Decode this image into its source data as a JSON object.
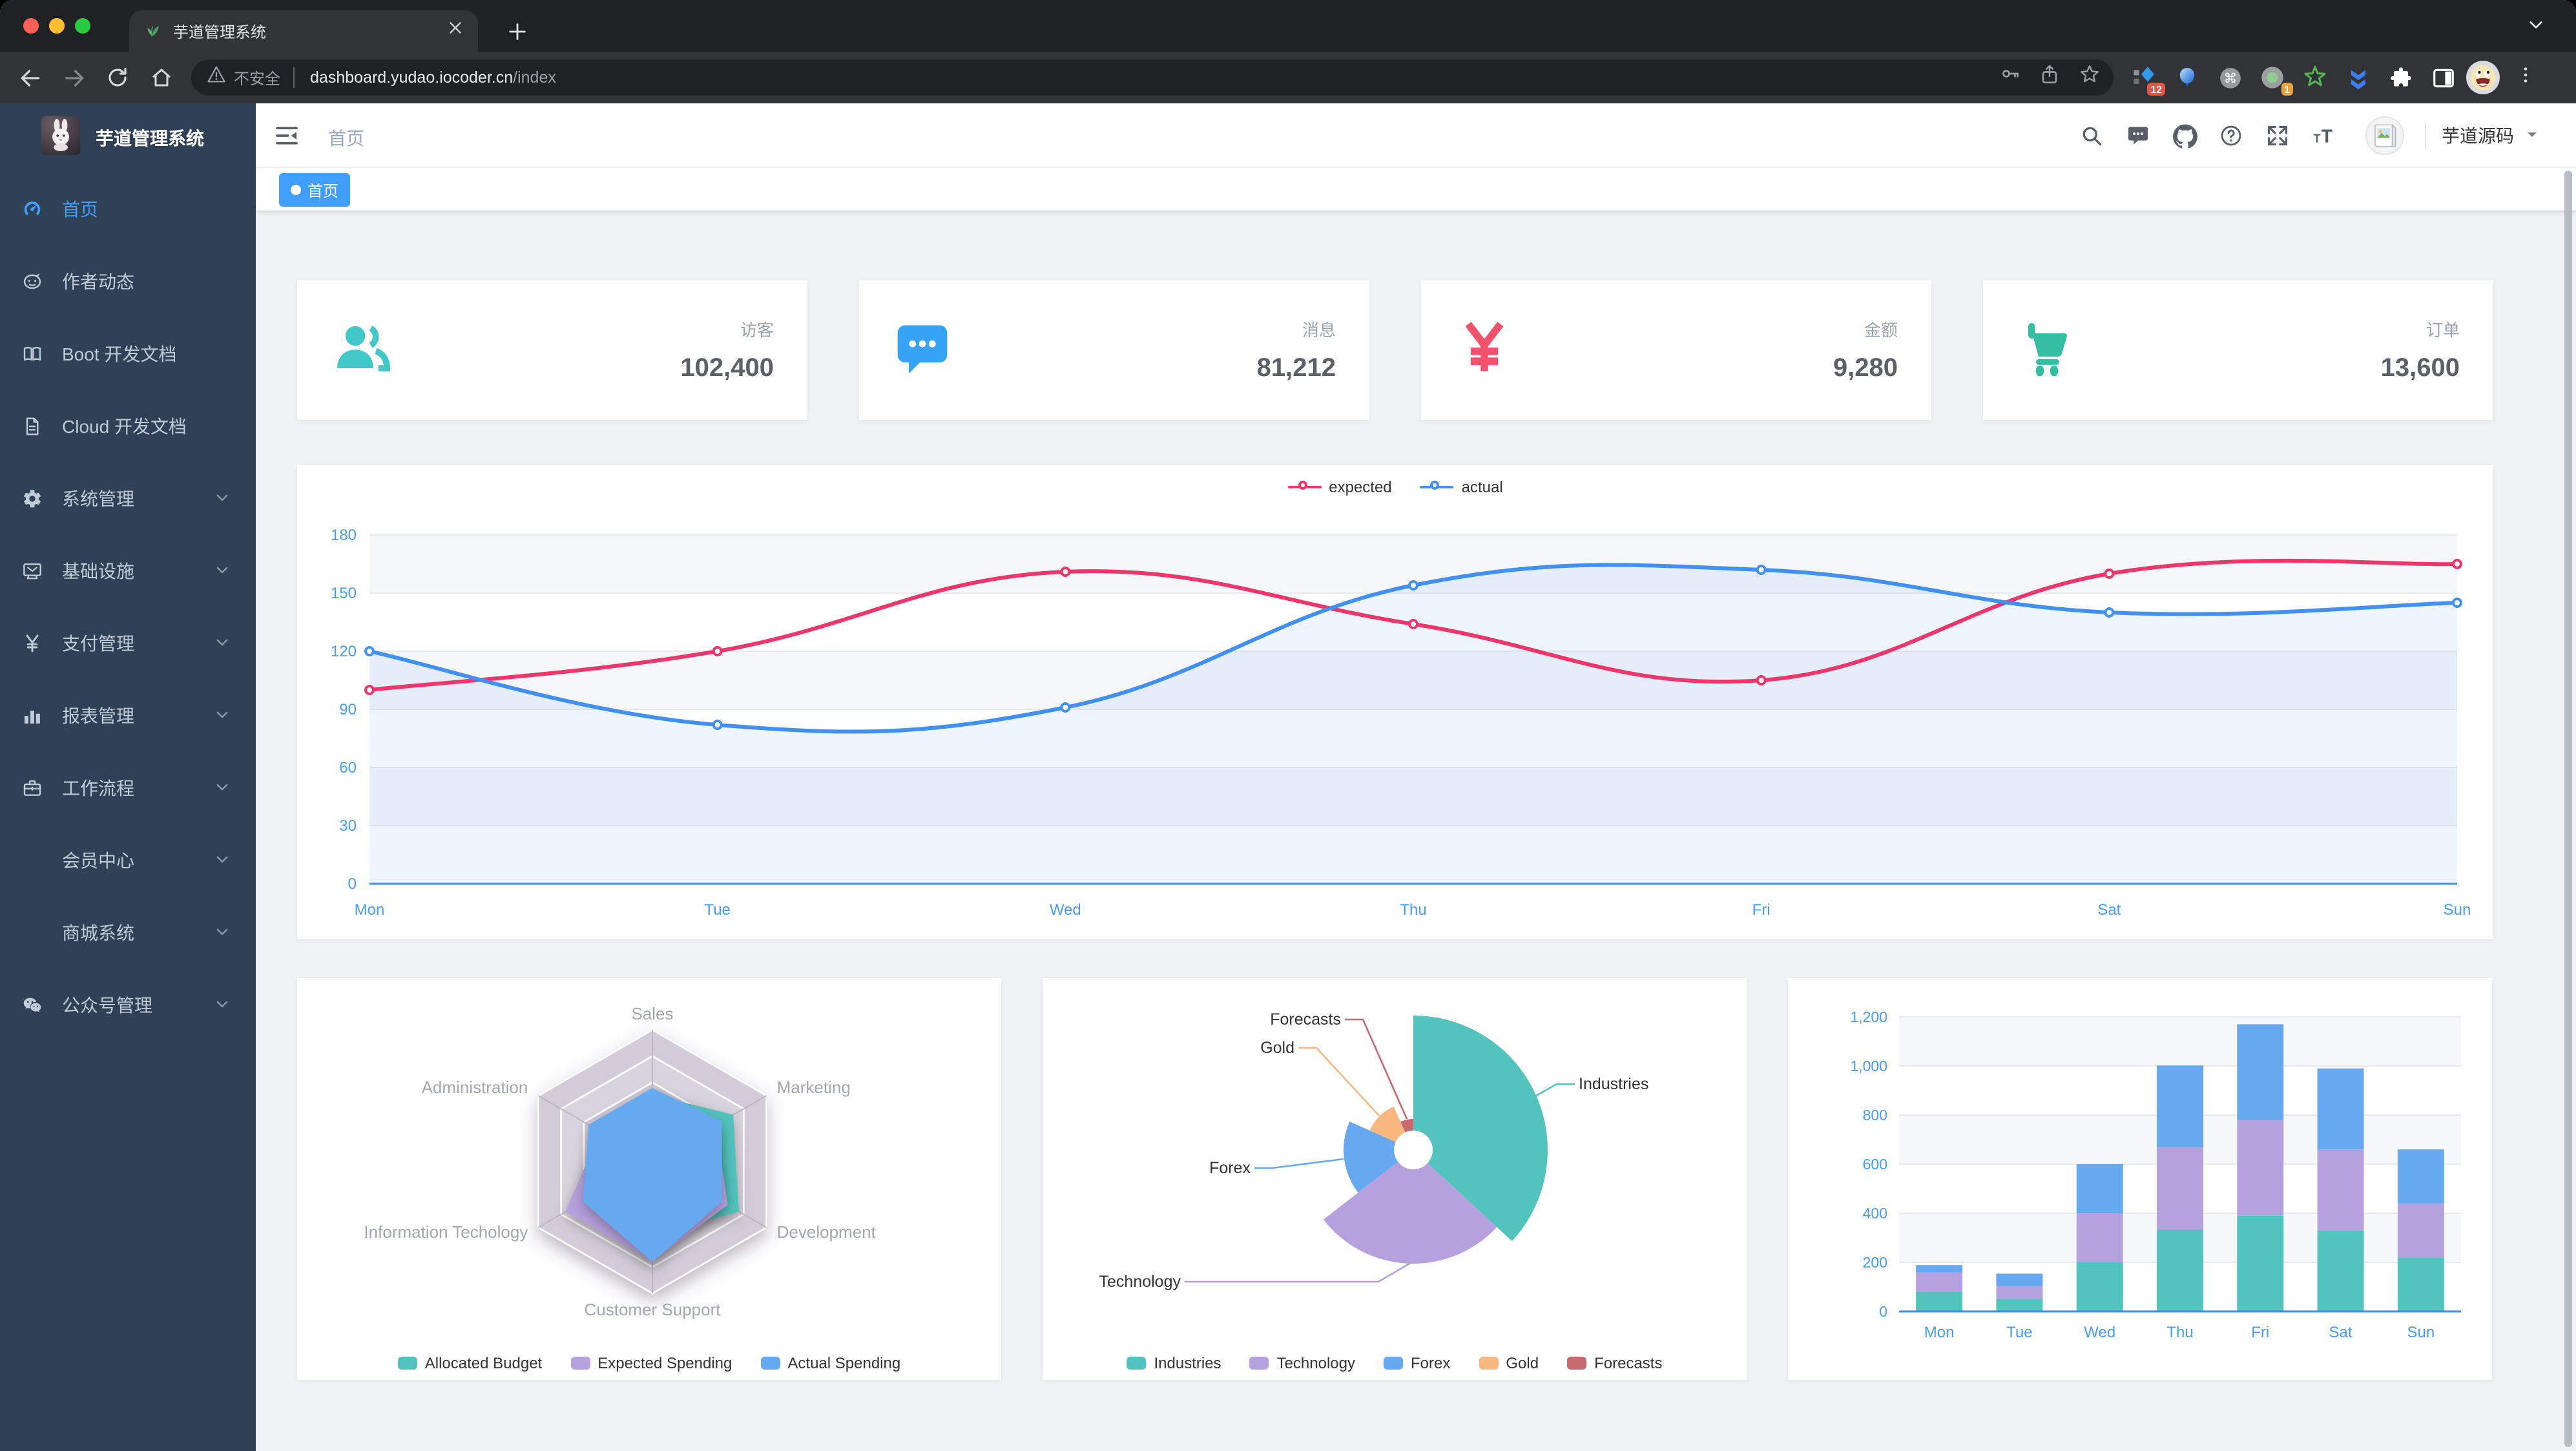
{
  "browser": {
    "tab": {
      "title": "芋道管理系统",
      "favicon": "sprout-icon"
    },
    "address": {
      "security_label": "不安全",
      "url": "dashboard.yudao.iocoder.cn",
      "path": "/index"
    },
    "extensions": [
      {
        "name": "blue-diamond-extension",
        "badge": "12"
      },
      {
        "name": "balloon-extension",
        "badge": ""
      },
      {
        "name": "command-circle-extension",
        "badge": ""
      },
      {
        "name": "record-circle-extension",
        "badge": "1"
      },
      {
        "name": "green-star-extension",
        "badge": ""
      },
      {
        "name": "double-chevron-extension",
        "badge": ""
      },
      {
        "name": "puzzle-extensions-menu",
        "badge": ""
      },
      {
        "name": "side-panel-toggle",
        "badge": ""
      }
    ]
  },
  "sidebar": {
    "title": "芋道管理系统",
    "items": [
      {
        "label": "首页",
        "icon": "dashboard-icon",
        "active": true,
        "arrow": false
      },
      {
        "label": "作者动态",
        "icon": "author-icon",
        "active": false,
        "arrow": false
      },
      {
        "label": "Boot 开发文档",
        "icon": "book-icon",
        "active": false,
        "arrow": false
      },
      {
        "label": "Cloud 开发文档",
        "icon": "document-icon",
        "active": false,
        "arrow": false
      },
      {
        "label": "系统管理",
        "icon": "gear-icon",
        "active": false,
        "arrow": true
      },
      {
        "label": "基础设施",
        "icon": "monitor-icon",
        "active": false,
        "arrow": true
      },
      {
        "label": "支付管理",
        "icon": "yen-icon",
        "active": false,
        "arrow": true
      },
      {
        "label": "报表管理",
        "icon": "chart-icon",
        "active": false,
        "arrow": true
      },
      {
        "label": "工作流程",
        "icon": "briefcase-icon",
        "active": false,
        "arrow": true
      },
      {
        "label": "会员中心",
        "icon": "",
        "active": false,
        "arrow": true
      },
      {
        "label": "商城系统",
        "icon": "",
        "active": false,
        "arrow": true
      },
      {
        "label": "公众号管理",
        "icon": "wechat-icon",
        "active": false,
        "arrow": true
      }
    ]
  },
  "navbar": {
    "breadcrumb": "首页",
    "username": "芋道源码",
    "icons": [
      "search-icon",
      "message-icon",
      "github-icon",
      "question-icon",
      "fullscreen-icon",
      "text-size-icon"
    ]
  },
  "tags_view": {
    "active_tag": "首页"
  },
  "stat_cards": [
    {
      "label": "访客",
      "value": "102,400",
      "icon": "people-stat-icon",
      "color": "#40c9c6"
    },
    {
      "label": "消息",
      "value": "81,212",
      "icon": "message-stat-icon",
      "color": "#36a3f7"
    },
    {
      "label": "金额",
      "value": "9,280",
      "icon": "money-stat-icon",
      "color": "#f4516c"
    },
    {
      "label": "订单",
      "value": "13,600",
      "icon": "cart-stat-icon",
      "color": "#34bfa3"
    }
  ],
  "chart_data": [
    {
      "type": "line",
      "x": [
        "Mon",
        "Tue",
        "Wed",
        "Thu",
        "Fri",
        "Sat",
        "Sun"
      ],
      "yticks": [
        0,
        30,
        60,
        90,
        120,
        150,
        180
      ],
      "ylim": [
        0,
        180
      ],
      "legend_position": "top",
      "grid": true,
      "axis_color": "#459df5",
      "series": [
        {
          "name": "expected",
          "color": "#f0356a",
          "area": false,
          "values": [
            100,
            120,
            161,
            134,
            105,
            160,
            165
          ]
        },
        {
          "name": "actual",
          "color": "#4090f7",
          "area": true,
          "values": [
            120,
            82,
            91,
            154,
            162,
            140,
            145
          ]
        }
      ]
    },
    {
      "type": "radar",
      "legend_position": "bottom",
      "indicators": [
        {
          "name": "Sales",
          "max": 10000
        },
        {
          "name": "Administration",
          "max": 20000
        },
        {
          "name": "Information Techology",
          "max": 20000
        },
        {
          "name": "Customer Support",
          "max": 20000
        },
        {
          "name": "Development",
          "max": 20000
        },
        {
          "name": "Marketing",
          "max": 20000
        }
      ],
      "series": [
        {
          "name": "Allocated Budget",
          "color": "#53c3bd",
          "values": [
            5000,
            7000,
            12000,
            11000,
            15000,
            14000
          ]
        },
        {
          "name": "Expected Spending",
          "color": "#b5a1dd",
          "values": [
            4000,
            9000,
            15000,
            15000,
            13000,
            11000
          ]
        },
        {
          "name": "Actual Spending",
          "color": "#66a9ee",
          "values": [
            5500,
            11000,
            12000,
            15000,
            12000,
            12000
          ]
        }
      ]
    },
    {
      "type": "pie",
      "rose": true,
      "legend_position": "bottom",
      "items": [
        {
          "name": "Industries",
          "value": 320,
          "color": "#53c3bd"
        },
        {
          "name": "Technology",
          "value": 240,
          "color": "#b5a1dd"
        },
        {
          "name": "Forex",
          "value": 149,
          "color": "#66a9ee"
        },
        {
          "name": "Gold",
          "value": 100,
          "color": "#f8b880"
        },
        {
          "name": "Forecasts",
          "value": 59,
          "color": "#c56b70"
        }
      ]
    },
    {
      "type": "bar",
      "stacked": true,
      "categories": [
        "Mon",
        "Tue",
        "Wed",
        "Thu",
        "Fri",
        "Sat",
        "Sun"
      ],
      "ylim": [
        0,
        1200
      ],
      "ytick_labels": [
        "0",
        "200",
        "400",
        "600",
        "800",
        "1,000",
        "1,200"
      ],
      "axis_color": "#459df5",
      "series": [
        {
          "color": "#53c3bd",
          "values": [
            79,
            52,
            200,
            334,
            390,
            330,
            220
          ]
        },
        {
          "color": "#b5a1dd",
          "values": [
            80,
            52,
            200,
            334,
            390,
            330,
            220
          ]
        },
        {
          "color": "#66a9ee",
          "values": [
            30,
            50,
            200,
            334,
            390,
            330,
            220
          ]
        }
      ]
    }
  ]
}
